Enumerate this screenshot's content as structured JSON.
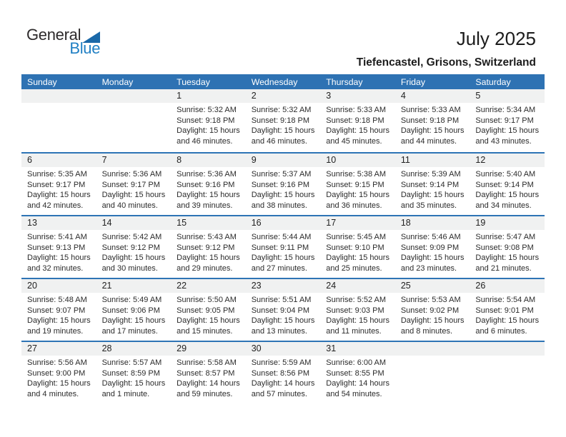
{
  "page": {
    "title": "July 2025",
    "subtitle": "Tiefencastel, Grisons, Switzerland"
  },
  "logo": {
    "word1": "General",
    "word2": "Blue",
    "triangle_icon": "blue-right-triangle"
  },
  "colors": {
    "header_blue": "#2e72b3",
    "separator_blue": "#2e74b5",
    "band_gray": "#f0f1f1",
    "logo_blue": "#2180c4",
    "logo_triangle_blue": "#1a68a8",
    "text_dark": "#2b2b2b"
  },
  "calendar": {
    "weekday_headers": [
      "Sunday",
      "Monday",
      "Tuesday",
      "Wednesday",
      "Thursday",
      "Friday",
      "Saturday"
    ],
    "weeks": [
      {
        "cells": [
          {
            "day": "",
            "lines": []
          },
          {
            "day": "",
            "lines": []
          },
          {
            "day": "1",
            "lines": [
              "Sunrise: 5:32 AM",
              "Sunset: 9:18 PM",
              "Daylight: 15 hours",
              "and 46 minutes."
            ]
          },
          {
            "day": "2",
            "lines": [
              "Sunrise: 5:32 AM",
              "Sunset: 9:18 PM",
              "Daylight: 15 hours",
              "and 46 minutes."
            ]
          },
          {
            "day": "3",
            "lines": [
              "Sunrise: 5:33 AM",
              "Sunset: 9:18 PM",
              "Daylight: 15 hours",
              "and 45 minutes."
            ]
          },
          {
            "day": "4",
            "lines": [
              "Sunrise: 5:33 AM",
              "Sunset: 9:18 PM",
              "Daylight: 15 hours",
              "and 44 minutes."
            ]
          },
          {
            "day": "5",
            "lines": [
              "Sunrise: 5:34 AM",
              "Sunset: 9:17 PM",
              "Daylight: 15 hours",
              "and 43 minutes."
            ]
          }
        ]
      },
      {
        "cells": [
          {
            "day": "6",
            "lines": [
              "Sunrise: 5:35 AM",
              "Sunset: 9:17 PM",
              "Daylight: 15 hours",
              "and 42 minutes."
            ]
          },
          {
            "day": "7",
            "lines": [
              "Sunrise: 5:36 AM",
              "Sunset: 9:17 PM",
              "Daylight: 15 hours",
              "and 40 minutes."
            ]
          },
          {
            "day": "8",
            "lines": [
              "Sunrise: 5:36 AM",
              "Sunset: 9:16 PM",
              "Daylight: 15 hours",
              "and 39 minutes."
            ]
          },
          {
            "day": "9",
            "lines": [
              "Sunrise: 5:37 AM",
              "Sunset: 9:16 PM",
              "Daylight: 15 hours",
              "and 38 minutes."
            ]
          },
          {
            "day": "10",
            "lines": [
              "Sunrise: 5:38 AM",
              "Sunset: 9:15 PM",
              "Daylight: 15 hours",
              "and 36 minutes."
            ]
          },
          {
            "day": "11",
            "lines": [
              "Sunrise: 5:39 AM",
              "Sunset: 9:14 PM",
              "Daylight: 15 hours",
              "and 35 minutes."
            ]
          },
          {
            "day": "12",
            "lines": [
              "Sunrise: 5:40 AM",
              "Sunset: 9:14 PM",
              "Daylight: 15 hours",
              "and 34 minutes."
            ]
          }
        ]
      },
      {
        "cells": [
          {
            "day": "13",
            "lines": [
              "Sunrise: 5:41 AM",
              "Sunset: 9:13 PM",
              "Daylight: 15 hours",
              "and 32 minutes."
            ]
          },
          {
            "day": "14",
            "lines": [
              "Sunrise: 5:42 AM",
              "Sunset: 9:12 PM",
              "Daylight: 15 hours",
              "and 30 minutes."
            ]
          },
          {
            "day": "15",
            "lines": [
              "Sunrise: 5:43 AM",
              "Sunset: 9:12 PM",
              "Daylight: 15 hours",
              "and 29 minutes."
            ]
          },
          {
            "day": "16",
            "lines": [
              "Sunrise: 5:44 AM",
              "Sunset: 9:11 PM",
              "Daylight: 15 hours",
              "and 27 minutes."
            ]
          },
          {
            "day": "17",
            "lines": [
              "Sunrise: 5:45 AM",
              "Sunset: 9:10 PM",
              "Daylight: 15 hours",
              "and 25 minutes."
            ]
          },
          {
            "day": "18",
            "lines": [
              "Sunrise: 5:46 AM",
              "Sunset: 9:09 PM",
              "Daylight: 15 hours",
              "and 23 minutes."
            ]
          },
          {
            "day": "19",
            "lines": [
              "Sunrise: 5:47 AM",
              "Sunset: 9:08 PM",
              "Daylight: 15 hours",
              "and 21 minutes."
            ]
          }
        ]
      },
      {
        "cells": [
          {
            "day": "20",
            "lines": [
              "Sunrise: 5:48 AM",
              "Sunset: 9:07 PM",
              "Daylight: 15 hours",
              "and 19 minutes."
            ]
          },
          {
            "day": "21",
            "lines": [
              "Sunrise: 5:49 AM",
              "Sunset: 9:06 PM",
              "Daylight: 15 hours",
              "and 17 minutes."
            ]
          },
          {
            "day": "22",
            "lines": [
              "Sunrise: 5:50 AM",
              "Sunset: 9:05 PM",
              "Daylight: 15 hours",
              "and 15 minutes."
            ]
          },
          {
            "day": "23",
            "lines": [
              "Sunrise: 5:51 AM",
              "Sunset: 9:04 PM",
              "Daylight: 15 hours",
              "and 13 minutes."
            ]
          },
          {
            "day": "24",
            "lines": [
              "Sunrise: 5:52 AM",
              "Sunset: 9:03 PM",
              "Daylight: 15 hours",
              "and 11 minutes."
            ]
          },
          {
            "day": "25",
            "lines": [
              "Sunrise: 5:53 AM",
              "Sunset: 9:02 PM",
              "Daylight: 15 hours",
              "and 8 minutes."
            ]
          },
          {
            "day": "26",
            "lines": [
              "Sunrise: 5:54 AM",
              "Sunset: 9:01 PM",
              "Daylight: 15 hours",
              "and 6 minutes."
            ]
          }
        ]
      },
      {
        "cells": [
          {
            "day": "27",
            "lines": [
              "Sunrise: 5:56 AM",
              "Sunset: 9:00 PM",
              "Daylight: 15 hours",
              "and 4 minutes."
            ]
          },
          {
            "day": "28",
            "lines": [
              "Sunrise: 5:57 AM",
              "Sunset: 8:59 PM",
              "Daylight: 15 hours",
              "and 1 minute."
            ]
          },
          {
            "day": "29",
            "lines": [
              "Sunrise: 5:58 AM",
              "Sunset: 8:57 PM",
              "Daylight: 14 hours",
              "and 59 minutes."
            ]
          },
          {
            "day": "30",
            "lines": [
              "Sunrise: 5:59 AM",
              "Sunset: 8:56 PM",
              "Daylight: 14 hours",
              "and 57 minutes."
            ]
          },
          {
            "day": "31",
            "lines": [
              "Sunrise: 6:00 AM",
              "Sunset: 8:55 PM",
              "Daylight: 14 hours",
              "and 54 minutes."
            ]
          },
          {
            "day": "",
            "lines": []
          },
          {
            "day": "",
            "lines": []
          }
        ]
      }
    ]
  }
}
